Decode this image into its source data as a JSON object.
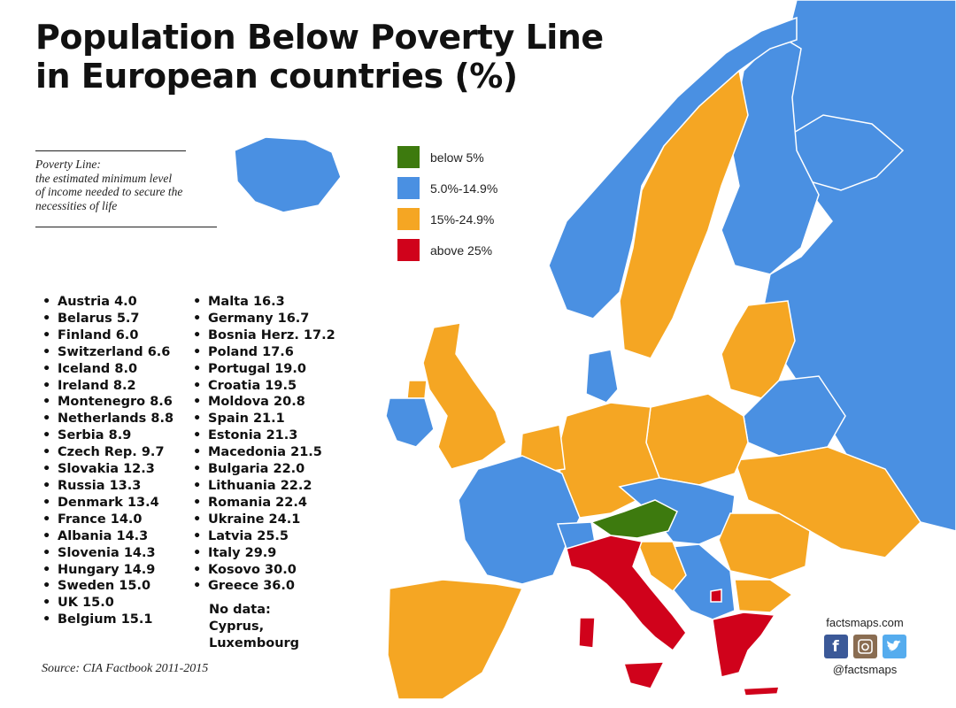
{
  "title_lines": [
    "Population Below Poverty Line",
    "in European countries (%)"
  ],
  "definition_lines": [
    "Poverty Line:",
    "the estimated minimum level",
    "of income needed to secure the",
    "necessities of life"
  ],
  "legend": [
    {
      "label": "below 5%",
      "color": "#3d7a0e"
    },
    {
      "label": "5.0%-14.9%",
      "color": "#4a90e2"
    },
    {
      "label": "15%-24.9%",
      "color": "#f5a623"
    },
    {
      "label": "above 25%",
      "color": "#d0021b"
    }
  ],
  "countries": [
    {
      "name": "Austria",
      "value": "4.0"
    },
    {
      "name": "Belarus",
      "value": "5.7"
    },
    {
      "name": "Finland",
      "value": "6.0"
    },
    {
      "name": "Switzerland",
      "value": "6.6"
    },
    {
      "name": "Iceland",
      "value": "8.0"
    },
    {
      "name": "Ireland",
      "value": "8.2"
    },
    {
      "name": "Montenegro",
      "value": "8.6"
    },
    {
      "name": "Netherlands",
      "value": "8.8"
    },
    {
      "name": "Serbia",
      "value": "8.9"
    },
    {
      "name": "Czech Rep.",
      "value": "9.7"
    },
    {
      "name": "Slovakia",
      "value": "12.3"
    },
    {
      "name": "Russia",
      "value": "13.3"
    },
    {
      "name": "Denmark",
      "value": "13.4"
    },
    {
      "name": "France",
      "value": "14.0"
    },
    {
      "name": "Albania",
      "value": "14.3"
    },
    {
      "name": "Slovenia",
      "value": "14.3"
    },
    {
      "name": "Hungary",
      "value": "14.9"
    },
    {
      "name": "Sweden",
      "value": "15.0"
    },
    {
      "name": "UK",
      "value": "15.0"
    },
    {
      "name": "Belgium",
      "value": "15.1"
    },
    {
      "name": "Malta",
      "value": "16.3"
    },
    {
      "name": "Germany",
      "value": "16.7"
    },
    {
      "name": "Bosnia Herz.",
      "value": "17.2"
    },
    {
      "name": "Poland",
      "value": "17.6"
    },
    {
      "name": "Portugal",
      "value": "19.0"
    },
    {
      "name": "Croatia",
      "value": "19.5"
    },
    {
      "name": "Moldova",
      "value": "20.8"
    },
    {
      "name": "Spain",
      "value": "21.1"
    },
    {
      "name": "Estonia",
      "value": "21.3"
    },
    {
      "name": "Macedonia",
      "value": "21.5"
    },
    {
      "name": "Bulgaria",
      "value": "22.0"
    },
    {
      "name": "Lithuania",
      "value": "22.2"
    },
    {
      "name": "Romania",
      "value": "22.4"
    },
    {
      "name": "Ukraine",
      "value": "24.1"
    },
    {
      "name": "Latvia",
      "value": "25.5"
    },
    {
      "name": "Italy",
      "value": "29.9"
    },
    {
      "name": "Kosovo",
      "value": "30.0"
    },
    {
      "name": "Greece",
      "value": "36.0"
    }
  ],
  "no_data": {
    "heading": "No data:",
    "lines": [
      "Cyprus,",
      "Luxembourg"
    ]
  },
  "source": "Source: CIA Factbook 2011-2015",
  "brand": {
    "site": "factsmaps.com",
    "handle": "@factsmaps"
  },
  "social_icons": [
    "facebook-icon",
    "instagram-icon",
    "twitter-icon"
  ],
  "colors": {
    "background": "#ffffff",
    "border": "#ffffff"
  }
}
